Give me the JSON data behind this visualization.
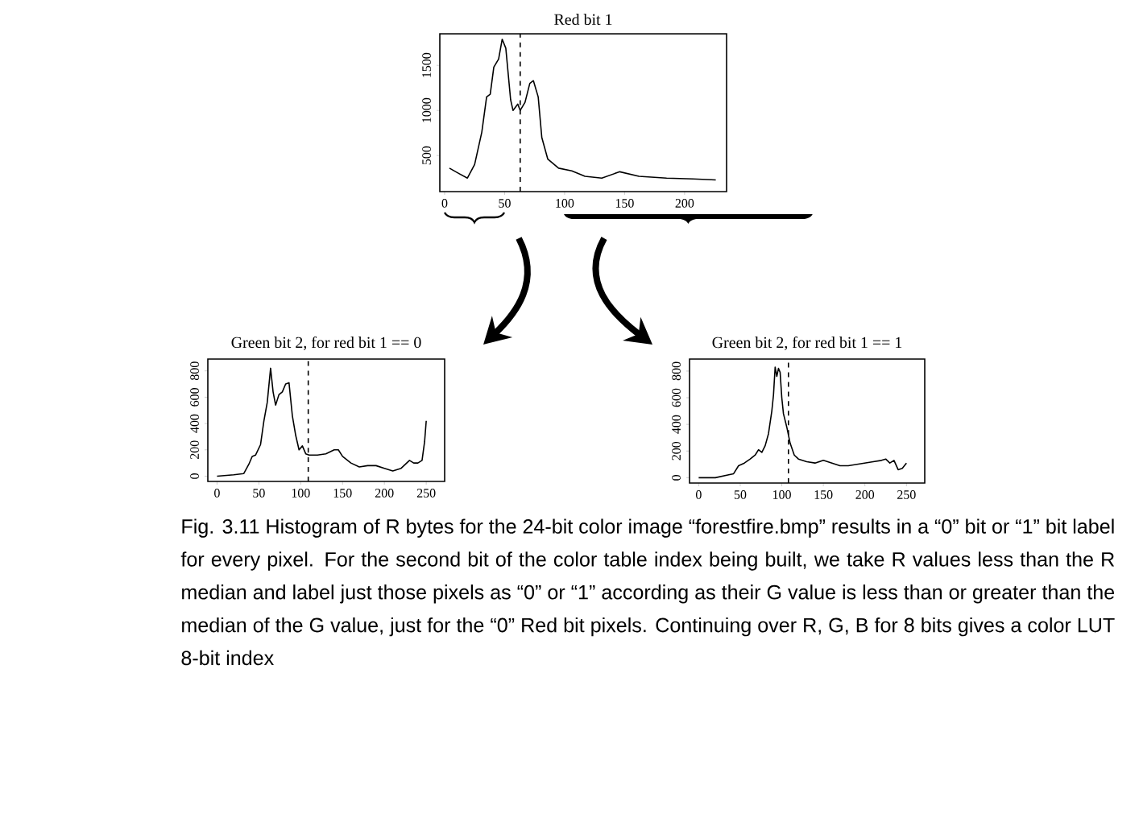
{
  "chart_data": [
    {
      "type": "line",
      "title": "Red bit 1",
      "xlim": [
        -4,
        235
      ],
      "ylim": [
        100,
        1850
      ],
      "xticks": [
        0,
        50,
        100,
        150,
        200
      ],
      "yticks": [
        500,
        1000,
        1500
      ],
      "series": [
        {
          "color": "#000000",
          "x": [
            4,
            12,
            19,
            25,
            31,
            35,
            38,
            41,
            45,
            48,
            51,
            55,
            57,
            61,
            63,
            67,
            71,
            74,
            78,
            81,
            86,
            95,
            106,
            117,
            131,
            146,
            162,
            185,
            207,
            226
          ],
          "values": [
            360,
            300,
            250,
            400,
            760,
            1150,
            1180,
            1480,
            1570,
            1790,
            1690,
            1120,
            1000,
            1070,
            1000,
            1090,
            1300,
            1330,
            1150,
            700,
            460,
            360,
            330,
            270,
            250,
            320,
            270,
            250,
            240,
            230
          ]
        }
      ],
      "ref_lines": [
        {
          "axis": "x",
          "value": 63,
          "line_style": "dashed"
        }
      ]
    },
    {
      "type": "line",
      "title": "Green bit 2, for red bit 1 == 0",
      "xlim": [
        -11,
        272
      ],
      "ylim": [
        -40,
        890
      ],
      "xticks": [
        0,
        50,
        100,
        150,
        200,
        250
      ],
      "yticks": [
        0,
        200,
        400,
        600,
        800
      ],
      "series": [
        {
          "color": "#000000",
          "x": [
            0,
            20,
            32,
            38,
            42,
            46,
            52,
            56,
            60,
            64,
            67,
            70,
            74,
            78,
            82,
            86,
            90,
            94,
            98,
            102,
            106,
            110,
            120,
            130,
            140,
            145,
            150,
            160,
            170,
            180,
            190,
            200,
            210,
            220,
            230,
            235,
            240,
            245,
            248,
            250
          ],
          "values": [
            0,
            10,
            20,
            90,
            150,
            160,
            240,
            420,
            560,
            820,
            640,
            540,
            620,
            640,
            700,
            710,
            460,
            310,
            200,
            230,
            170,
            160,
            160,
            170,
            200,
            200,
            150,
            100,
            70,
            80,
            80,
            60,
            40,
            60,
            120,
            100,
            100,
            120,
            260,
            420
          ]
        }
      ],
      "ref_lines": [
        {
          "axis": "x",
          "value": 109,
          "line_style": "dashed"
        }
      ]
    },
    {
      "type": "line",
      "title": "Green bit 2, for red bit 1 == 1",
      "xlim": [
        -11,
        272
      ],
      "ylim": [
        -40,
        890
      ],
      "xticks": [
        0,
        50,
        100,
        150,
        200,
        250
      ],
      "yticks": [
        0,
        200,
        400,
        600,
        800
      ],
      "series": [
        {
          "color": "#000000",
          "x": [
            0,
            20,
            35,
            42,
            48,
            55,
            62,
            68,
            72,
            76,
            80,
            84,
            88,
            90,
            92,
            94,
            96,
            98,
            100,
            102,
            106,
            110,
            115,
            120,
            130,
            140,
            150,
            160,
            170,
            180,
            190,
            200,
            210,
            220,
            225,
            230,
            235,
            240,
            245,
            250
          ],
          "values": [
            0,
            0,
            20,
            30,
            90,
            110,
            140,
            170,
            210,
            190,
            240,
            330,
            500,
            620,
            830,
            760,
            820,
            790,
            600,
            480,
            380,
            260,
            170,
            140,
            120,
            110,
            130,
            110,
            90,
            90,
            100,
            110,
            120,
            130,
            140,
            110,
            130,
            60,
            70,
            110
          ]
        }
      ],
      "ref_lines": [
        {
          "axis": "x",
          "value": 108,
          "line_style": "dashed"
        }
      ]
    },
    {
      "type": "other",
      "annotations": [
        "Fig. 3.11 Histogram of R bytes for the 24-bit color image “forestfire.bmp” results in a “0” bit or “1” bit label for every pixel. For the second bit of the color table index being built, we take R values less than the R median and label just those pixels as “0” or “1” according as their G value is less than or greater than the median of the G value, just for the “0” Red bit pixels. Continuing over R, G, B for 8 bits gives a color LUT 8-bit index"
      ]
    }
  ]
}
